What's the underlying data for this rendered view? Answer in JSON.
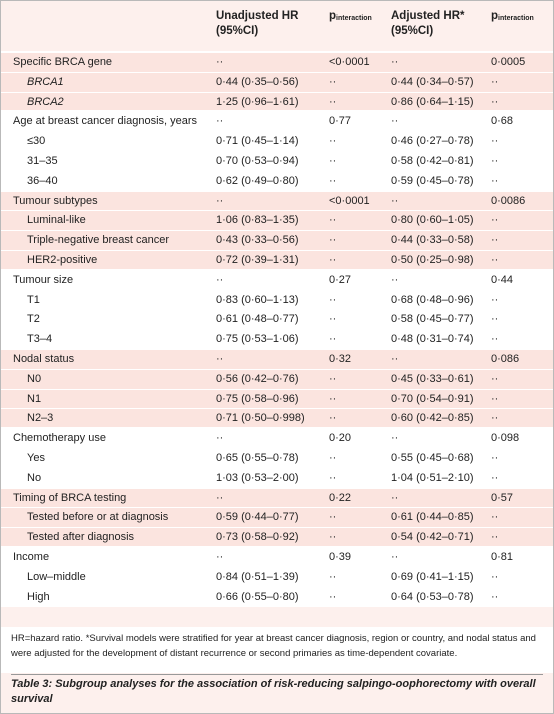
{
  "table": {
    "header": [
      {
        "main": "Unadjusted HR",
        "sub": "(95%CI)"
      },
      {
        "main": "p",
        "sub": "interaction"
      },
      {
        "main": "Adjusted HR*",
        "sub": "(95%CI)"
      },
      {
        "main": "p",
        "sub": "interaction"
      }
    ],
    "groups": [
      {
        "cells": [
          "Specific BRCA gene",
          "··",
          "<0·0001",
          "··",
          "0·0005"
        ],
        "rows": [
          {
            "cells": [
              "BRCA1",
              "0·44 (0·35–0·56)",
              "··",
              "0·44 (0·34–0·57)",
              "··"
            ],
            "italic": true
          },
          {
            "cells": [
              "BRCA2",
              "1·25 (0·96–1·61)",
              "··",
              "0·86 (0·64–1·15)",
              "··"
            ],
            "italic": true
          }
        ]
      },
      {
        "cells": [
          "Age at breast cancer diagnosis, years",
          "··",
          "0·77",
          "··",
          "0·68"
        ],
        "rows": [
          {
            "cells": [
              "≤30",
              "0·71 (0·45–1·14)",
              "··",
              "0·46 (0·27–0·78)",
              "··"
            ]
          },
          {
            "cells": [
              "31–35",
              "0·70 (0·53–0·94)",
              "··",
              "0·58 (0·42–0·81)",
              "··"
            ]
          },
          {
            "cells": [
              "36–40",
              "0·62 (0·49–0·80)",
              "··",
              "0·59 (0·45–0·78)",
              "··"
            ]
          }
        ]
      },
      {
        "cells": [
          "Tumour subtypes",
          "··",
          "<0·0001",
          "··",
          "0·0086"
        ],
        "rows": [
          {
            "cells": [
              "Luminal-like",
              "1·06 (0·83–1·35)",
              "··",
              "0·80 (0·60–1·05)",
              "··"
            ]
          },
          {
            "cells": [
              "Triple-negative breast cancer",
              "0·43 (0·33–0·56)",
              "··",
              "0·44 (0·33–0·58)",
              "··"
            ]
          },
          {
            "cells": [
              "HER2-positive",
              "0·72 (0·39–1·31)",
              "··",
              "0·50 (0·25–0·98)",
              "··"
            ]
          }
        ]
      },
      {
        "cells": [
          "Tumour size",
          "··",
          "0·27",
          "··",
          "0·44"
        ],
        "rows": [
          {
            "cells": [
              "T1",
              "0·83 (0·60–1·13)",
              "··",
              "0·68 (0·48–0·96)",
              "··"
            ]
          },
          {
            "cells": [
              "T2",
              "0·61 (0·48–0·77)",
              "··",
              "0·58 (0·45–0·77)",
              "··"
            ]
          },
          {
            "cells": [
              "T3–4",
              "0·75 (0·53–1·06)",
              "··",
              "0·48 (0·31–0·74)",
              "··"
            ]
          }
        ]
      },
      {
        "cells": [
          "Nodal status",
          "··",
          "0·32",
          "··",
          "0·086"
        ],
        "rows": [
          {
            "cells": [
              "N0",
              "0·56 (0·42–0·76)",
              "··",
              "0·45 (0·33–0·61)",
              "··"
            ]
          },
          {
            "cells": [
              "N1",
              "0·75 (0·58–0·96)",
              "··",
              "0·70 (0·54–0·91)",
              "··"
            ]
          },
          {
            "cells": [
              "N2–3",
              "0·71 (0·50–0·998)",
              "··",
              "0·60 (0·42–0·85)",
              "··"
            ]
          }
        ]
      },
      {
        "cells": [
          "Chemotherapy use",
          "··",
          "0·20",
          "··",
          "0·098"
        ],
        "rows": [
          {
            "cells": [
              "Yes",
              "0·65 (0·55–0·78)",
              "··",
              "0·55 (0·45–0·68)",
              "··"
            ]
          },
          {
            "cells": [
              "No",
              "1·03 (0·53–2·00)",
              "··",
              "1·04 (0·51–2·10)",
              "··"
            ]
          }
        ]
      },
      {
        "cells": [
          "Timing of BRCA testing",
          "··",
          "0·22",
          "··",
          "0·57"
        ],
        "rows": [
          {
            "cells": [
              "Tested before or at diagnosis",
              "0·59 (0·44–0·77)",
              "··",
              "0·61 (0·44–0·85)",
              "··"
            ]
          },
          {
            "cells": [
              "Tested after diagnosis",
              "0·73 (0·58–0·92)",
              "··",
              "0·54 (0·42–0·71)",
              "··"
            ]
          }
        ]
      },
      {
        "cells": [
          "Income",
          "··",
          "0·39",
          "··",
          "0·81"
        ],
        "rows": [
          {
            "cells": [
              "Low–middle",
              "0·84 (0·51–1·39)",
              "··",
              "0·69 (0·41–1·15)",
              "··"
            ]
          },
          {
            "cells": [
              "High",
              "0·66 (0·55–0·80)",
              "··",
              "0·64 (0·53–0·78)",
              "··"
            ]
          }
        ]
      }
    ],
    "footnote": "HR=hazard ratio. *Survival models were stratified for year at breast cancer diagnosis, region or country, and nodal status and were adjusted for the development of distant recurrence or second primaries as time-dependent covariate.",
    "caption": "Table 3: Subgroup analyses for the association of risk-reducing salpingo-oophorectomy with overall survival"
  }
}
